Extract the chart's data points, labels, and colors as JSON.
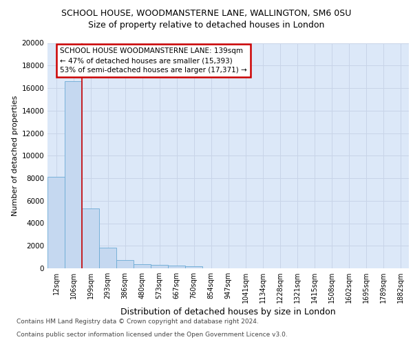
{
  "title": "SCHOOL HOUSE, WOODMANSTERNE LANE, WALLINGTON, SM6 0SU",
  "subtitle": "Size of property relative to detached houses in London",
  "xlabel": "Distribution of detached houses by size in London",
  "ylabel": "Number of detached properties",
  "footer_line1": "Contains HM Land Registry data © Crown copyright and database right 2024.",
  "footer_line2": "Contains public sector information licensed under the Open Government Licence v3.0.",
  "bar_labels": [
    "12sqm",
    "106sqm",
    "199sqm",
    "293sqm",
    "386sqm",
    "480sqm",
    "573sqm",
    "667sqm",
    "760sqm",
    "854sqm",
    "947sqm",
    "1041sqm",
    "1134sqm",
    "1228sqm",
    "1321sqm",
    "1415sqm",
    "1508sqm",
    "1602sqm",
    "1695sqm",
    "1789sqm",
    "1882sqm"
  ],
  "bar_values": [
    8100,
    16600,
    5300,
    1850,
    750,
    350,
    280,
    230,
    200,
    0,
    0,
    0,
    0,
    0,
    0,
    0,
    0,
    0,
    0,
    0,
    0
  ],
  "bar_color": "#c5d8f0",
  "bar_edge_color": "#6aaad4",
  "grid_color": "#c8d4e8",
  "annotation_text": "SCHOOL HOUSE WOODMANSTERNE LANE: 139sqm\n← 47% of detached houses are smaller (15,393)\n53% of semi-detached houses are larger (17,371) →",
  "annotation_box_color": "#ffffff",
  "annotation_box_edge": "#cc0000",
  "red_line_x": 1.5,
  "ylim": [
    0,
    20000
  ],
  "yticks": [
    0,
    2000,
    4000,
    6000,
    8000,
    10000,
    12000,
    14000,
    16000,
    18000,
    20000
  ],
  "background_color": "#dce8f8",
  "fig_background": "#ffffff",
  "title_fontsize": 9,
  "subtitle_fontsize": 9,
  "ylabel_fontsize": 8,
  "xlabel_fontsize": 9,
  "tick_fontsize": 7.5,
  "xtick_fontsize": 7,
  "footer_fontsize": 6.5,
  "annot_fontsize": 7.5
}
